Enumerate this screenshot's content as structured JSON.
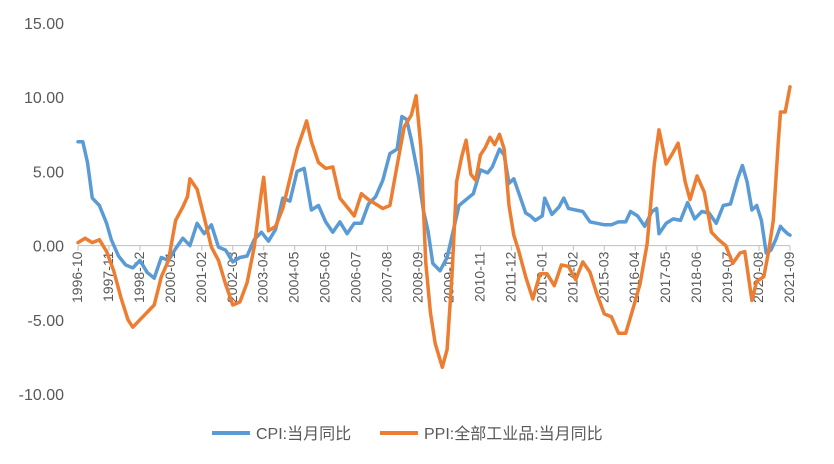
{
  "chart_data": {
    "type": "line",
    "title": "",
    "xlabel": "",
    "ylabel": "",
    "ylim": [
      -10,
      15
    ],
    "yticks": [
      -10,
      -5,
      0,
      5,
      10,
      15
    ],
    "ytick_labels": [
      "-10.00",
      "-5.00",
      "0.00",
      "5.00",
      "10.00",
      "15.00"
    ],
    "grid": false,
    "legend": "bottom",
    "x_start": "1996-10",
    "x_end": "2021-09",
    "xtick_labels": [
      "1996-10",
      "1997-11",
      "1998-12",
      "2000-01",
      "2001-02",
      "2002-03",
      "2003-04",
      "2004-05",
      "2005-06",
      "2006-07",
      "2007-08",
      "2008-09",
      "2009-10",
      "2010-11",
      "2011-12",
      "2013-01",
      "2014-02",
      "2015-03",
      "2016-04",
      "2017-05",
      "2018-06",
      "2019-07",
      "2020-08",
      "2021-09"
    ],
    "series": [
      {
        "name": "CPI:当月同比",
        "color": "#5B9BD5",
        "points": [
          [
            "1996-10",
            7.0
          ],
          [
            "1996-12",
            7.0
          ],
          [
            "1997-02",
            5.6
          ],
          [
            "1997-04",
            3.2
          ],
          [
            "1997-07",
            2.7
          ],
          [
            "1997-10",
            1.5
          ],
          [
            "1997-12",
            0.4
          ],
          [
            "1998-03",
            -0.7
          ],
          [
            "1998-06",
            -1.3
          ],
          [
            "1998-09",
            -1.5
          ],
          [
            "1998-12",
            -1.0
          ],
          [
            "1999-03",
            -1.8
          ],
          [
            "1999-06",
            -2.2
          ],
          [
            "1999-09",
            -0.8
          ],
          [
            "1999-12",
            -1.0
          ],
          [
            "2000-03",
            -0.2
          ],
          [
            "2000-06",
            0.5
          ],
          [
            "2000-09",
            0.0
          ],
          [
            "2000-12",
            1.5
          ],
          [
            "2001-03",
            0.8
          ],
          [
            "2001-06",
            1.4
          ],
          [
            "2001-09",
            -0.1
          ],
          [
            "2001-12",
            -0.3
          ],
          [
            "2002-03",
            -1.1
          ],
          [
            "2002-06",
            -0.8
          ],
          [
            "2002-09",
            -0.7
          ],
          [
            "2002-12",
            0.4
          ],
          [
            "2003-03",
            0.9
          ],
          [
            "2003-06",
            0.3
          ],
          [
            "2003-09",
            1.1
          ],
          [
            "2003-12",
            3.2
          ],
          [
            "2004-03",
            3.0
          ],
          [
            "2004-06",
            5.0
          ],
          [
            "2004-09",
            5.2
          ],
          [
            "2004-12",
            2.4
          ],
          [
            "2005-03",
            2.7
          ],
          [
            "2005-06",
            1.6
          ],
          [
            "2005-09",
            0.9
          ],
          [
            "2005-12",
            1.6
          ],
          [
            "2006-03",
            0.8
          ],
          [
            "2006-06",
            1.5
          ],
          [
            "2006-09",
            1.5
          ],
          [
            "2006-12",
            2.8
          ],
          [
            "2007-03",
            3.3
          ],
          [
            "2007-06",
            4.4
          ],
          [
            "2007-09",
            6.2
          ],
          [
            "2007-12",
            6.5
          ],
          [
            "2008-02",
            8.7
          ],
          [
            "2008-04",
            8.5
          ],
          [
            "2008-06",
            7.1
          ],
          [
            "2008-09",
            4.6
          ],
          [
            "2008-11",
            2.4
          ],
          [
            "2009-01",
            1.0
          ],
          [
            "2009-03",
            -1.2
          ],
          [
            "2009-06",
            -1.7
          ],
          [
            "2009-09",
            -0.8
          ],
          [
            "2009-11",
            0.6
          ],
          [
            "2010-02",
            2.7
          ],
          [
            "2010-05",
            3.1
          ],
          [
            "2010-08",
            3.5
          ],
          [
            "2010-11",
            5.1
          ],
          [
            "2011-02",
            4.9
          ],
          [
            "2011-04",
            5.3
          ],
          [
            "2011-07",
            6.5
          ],
          [
            "2011-09",
            6.1
          ],
          [
            "2011-11",
            4.2
          ],
          [
            "2012-01",
            4.5
          ],
          [
            "2012-03",
            3.6
          ],
          [
            "2012-06",
            2.2
          ],
          [
            "2012-08",
            2.0
          ],
          [
            "2012-10",
            1.7
          ],
          [
            "2013-01",
            2.0
          ],
          [
            "2013-02",
            3.2
          ],
          [
            "2013-05",
            2.1
          ],
          [
            "2013-08",
            2.6
          ],
          [
            "2013-10",
            3.2
          ],
          [
            "2013-12",
            2.5
          ],
          [
            "2014-03",
            2.4
          ],
          [
            "2014-06",
            2.3
          ],
          [
            "2014-09",
            1.6
          ],
          [
            "2014-12",
            1.5
          ],
          [
            "2015-03",
            1.4
          ],
          [
            "2015-06",
            1.4
          ],
          [
            "2015-09",
            1.6
          ],
          [
            "2015-12",
            1.6
          ],
          [
            "2016-02",
            2.3
          ],
          [
            "2016-05",
            2.0
          ],
          [
            "2016-08",
            1.3
          ],
          [
            "2016-11",
            2.3
          ],
          [
            "2017-01",
            2.5
          ],
          [
            "2017-02",
            0.8
          ],
          [
            "2017-05",
            1.5
          ],
          [
            "2017-08",
            1.8
          ],
          [
            "2017-11",
            1.7
          ],
          [
            "2018-02",
            2.9
          ],
          [
            "2018-05",
            1.8
          ],
          [
            "2018-08",
            2.3
          ],
          [
            "2018-11",
            2.2
          ],
          [
            "2019-02",
            1.5
          ],
          [
            "2019-05",
            2.7
          ],
          [
            "2019-08",
            2.8
          ],
          [
            "2019-11",
            4.5
          ],
          [
            "2020-01",
            5.4
          ],
          [
            "2020-03",
            4.3
          ],
          [
            "2020-05",
            2.4
          ],
          [
            "2020-07",
            2.7
          ],
          [
            "2020-09",
            1.7
          ],
          [
            "2020-11",
            -0.5
          ],
          [
            "2021-01",
            -0.3
          ],
          [
            "2021-03",
            0.4
          ],
          [
            "2021-05",
            1.3
          ],
          [
            "2021-06",
            1.1
          ],
          [
            "2021-08",
            0.8
          ],
          [
            "2021-09",
            0.7
          ]
        ]
      },
      {
        "name": "PPI:全部工业品:当月同比",
        "color": "#ED7D31",
        "points": [
          [
            "1996-10",
            0.2
          ],
          [
            "1997-01",
            0.5
          ],
          [
            "1997-04",
            0.2
          ],
          [
            "1997-07",
            0.4
          ],
          [
            "1997-10",
            -0.4
          ],
          [
            "1998-01",
            -1.7
          ],
          [
            "1998-04",
            -3.5
          ],
          [
            "1998-07",
            -5.0
          ],
          [
            "1998-09",
            -5.5
          ],
          [
            "1998-12",
            -5.0
          ],
          [
            "1999-03",
            -4.5
          ],
          [
            "1999-06",
            -4.0
          ],
          [
            "1999-09",
            -2.1
          ],
          [
            "1999-12",
            -1.0
          ],
          [
            "2000-03",
            1.7
          ],
          [
            "2000-06",
            2.6
          ],
          [
            "2000-08",
            3.3
          ],
          [
            "2000-09",
            4.5
          ],
          [
            "2000-12",
            3.8
          ],
          [
            "2001-03",
            1.9
          ],
          [
            "2001-06",
            -0.1
          ],
          [
            "2001-09",
            -1.0
          ],
          [
            "2001-12",
            -2.6
          ],
          [
            "2002-03",
            -4.0
          ],
          [
            "2002-06",
            -3.8
          ],
          [
            "2002-09",
            -2.5
          ],
          [
            "2002-12",
            -0.1
          ],
          [
            "2003-03",
            3.6
          ],
          [
            "2003-04",
            4.6
          ],
          [
            "2003-06",
            1.0
          ],
          [
            "2003-09",
            1.3
          ],
          [
            "2003-12",
            2.5
          ],
          [
            "2004-03",
            4.5
          ],
          [
            "2004-06",
            6.5
          ],
          [
            "2004-09",
            7.9
          ],
          [
            "2004-10",
            8.4
          ],
          [
            "2004-12",
            7.0
          ],
          [
            "2005-03",
            5.6
          ],
          [
            "2005-06",
            5.2
          ],
          [
            "2005-09",
            5.3
          ],
          [
            "2005-12",
            3.2
          ],
          [
            "2006-03",
            2.6
          ],
          [
            "2006-06",
            2.0
          ],
          [
            "2006-09",
            3.5
          ],
          [
            "2006-12",
            3.1
          ],
          [
            "2007-03",
            2.8
          ],
          [
            "2007-06",
            2.5
          ],
          [
            "2007-09",
            2.7
          ],
          [
            "2007-12",
            5.4
          ],
          [
            "2008-03",
            8.0
          ],
          [
            "2008-06",
            8.8
          ],
          [
            "2008-08",
            10.1
          ],
          [
            "2008-10",
            6.6
          ],
          [
            "2008-12",
            -1.1
          ],
          [
            "2009-02",
            -4.5
          ],
          [
            "2009-04",
            -6.6
          ],
          [
            "2009-07",
            -8.2
          ],
          [
            "2009-09",
            -7.0
          ],
          [
            "2009-11",
            -2.1
          ],
          [
            "2010-01",
            4.3
          ],
          [
            "2010-03",
            5.9
          ],
          [
            "2010-05",
            7.1
          ],
          [
            "2010-07",
            4.8
          ],
          [
            "2010-09",
            4.4
          ],
          [
            "2010-11",
            6.1
          ],
          [
            "2011-01",
            6.6
          ],
          [
            "2011-03",
            7.3
          ],
          [
            "2011-05",
            6.8
          ],
          [
            "2011-07",
            7.5
          ],
          [
            "2011-09",
            6.5
          ],
          [
            "2011-11",
            2.7
          ],
          [
            "2012-01",
            0.7
          ],
          [
            "2012-03",
            -0.3
          ],
          [
            "2012-06",
            -2.1
          ],
          [
            "2012-09",
            -3.6
          ],
          [
            "2012-12",
            -1.9
          ],
          [
            "2013-03",
            -1.9
          ],
          [
            "2013-06",
            -2.7
          ],
          [
            "2013-09",
            -1.3
          ],
          [
            "2013-12",
            -1.4
          ],
          [
            "2014-03",
            -2.3
          ],
          [
            "2014-06",
            -1.1
          ],
          [
            "2014-09",
            -1.8
          ],
          [
            "2014-12",
            -3.3
          ],
          [
            "2015-03",
            -4.6
          ],
          [
            "2015-06",
            -4.8
          ],
          [
            "2015-09",
            -5.9
          ],
          [
            "2015-12",
            -5.9
          ],
          [
            "2016-03",
            -4.3
          ],
          [
            "2016-06",
            -2.6
          ],
          [
            "2016-09",
            0.1
          ],
          [
            "2016-12",
            5.5
          ],
          [
            "2017-02",
            7.8
          ],
          [
            "2017-05",
            5.5
          ],
          [
            "2017-08",
            6.3
          ],
          [
            "2017-10",
            6.9
          ],
          [
            "2018-01",
            4.3
          ],
          [
            "2018-03",
            3.1
          ],
          [
            "2018-06",
            4.7
          ],
          [
            "2018-09",
            3.6
          ],
          [
            "2018-12",
            0.9
          ],
          [
            "2019-03",
            0.4
          ],
          [
            "2019-06",
            0.0
          ],
          [
            "2019-09",
            -1.2
          ],
          [
            "2019-12",
            -0.5
          ],
          [
            "2020-02",
            -0.4
          ],
          [
            "2020-05",
            -3.7
          ],
          [
            "2020-07",
            -2.4
          ],
          [
            "2020-10",
            -2.1
          ],
          [
            "2020-12",
            -0.4
          ],
          [
            "2021-02",
            1.7
          ],
          [
            "2021-04",
            6.8
          ],
          [
            "2021-05",
            9.0
          ],
          [
            "2021-07",
            9.0
          ],
          [
            "2021-09",
            10.7
          ]
        ]
      }
    ]
  }
}
